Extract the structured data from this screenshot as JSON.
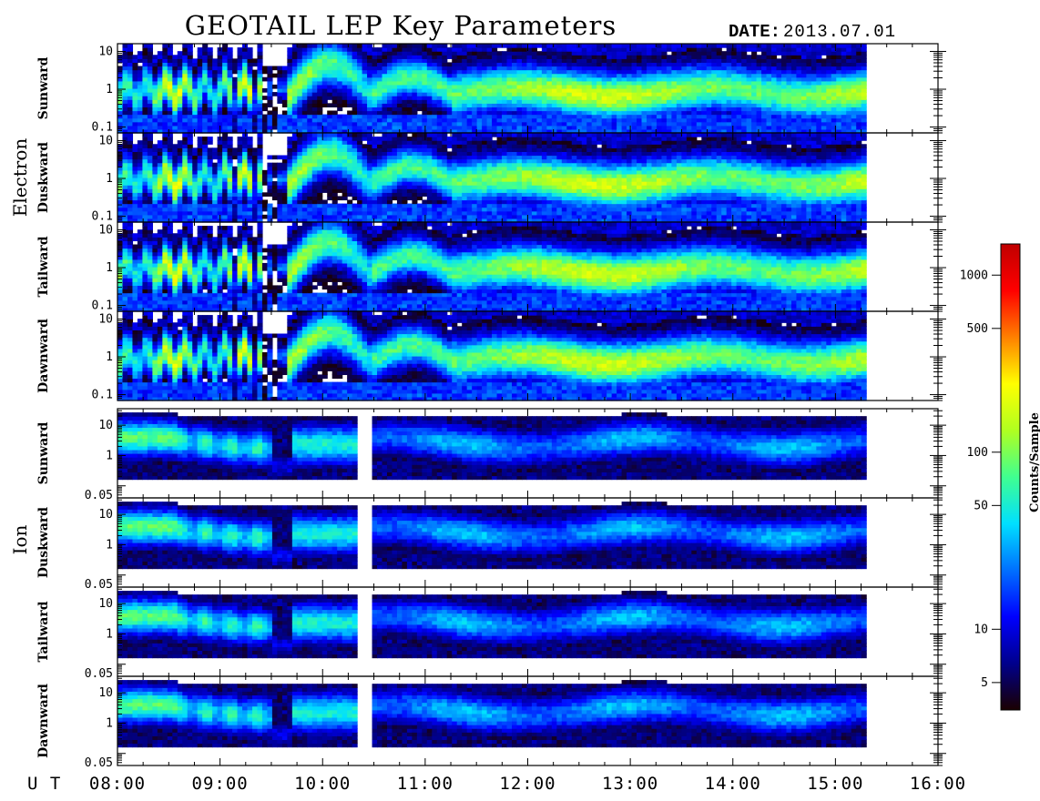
{
  "chart_data": {
    "type": "heatmap",
    "title": "GEOTAIL LEP Key Parameters",
    "date_label": "DATE:",
    "date_value": "2013.07.01",
    "time_axis": {
      "label": "U T",
      "range_hours": [
        8,
        16
      ],
      "ticks": [
        "08:00",
        "09:00",
        "10:00",
        "11:00",
        "12:00",
        "13:00",
        "14:00",
        "15:00",
        "16:00"
      ],
      "data_end_hours": 15.3
    },
    "groups": [
      {
        "label": "Electron",
        "y_range": [
          0.07,
          16
        ],
        "y_ticks": [
          {
            "label": "10",
            "value": 10
          },
          {
            "label": "1",
            "value": 1
          },
          {
            "label": "0.1",
            "value": 0.1
          }
        ],
        "panels": [
          {
            "label": "Sunward"
          },
          {
            "label": "Duskward"
          },
          {
            "label": "Tailward"
          },
          {
            "label": "Dawnward"
          }
        ]
      },
      {
        "label": "Ion",
        "y_range": [
          0.04,
          35
        ],
        "y_ticks": [
          {
            "label": "10",
            "value": 10
          },
          {
            "label": "1",
            "value": 1
          },
          {
            "label": "0.05",
            "value": 0.05
          }
        ],
        "panels": [
          {
            "label": "Sunward"
          },
          {
            "label": "Duskward"
          },
          {
            "label": "Tailward"
          },
          {
            "label": "Dawnward"
          }
        ]
      }
    ],
    "colorbar": {
      "title": "Counts/Sample",
      "scale": "log",
      "range": [
        3.5,
        1500
      ],
      "ticks": [
        {
          "label": "1000",
          "value": 1000
        },
        {
          "label": "500",
          "value": 500
        },
        {
          "label": "100",
          "value": 100
        },
        {
          "label": "50",
          "value": 50
        },
        {
          "label": "10",
          "value": 10
        },
        {
          "label": "5",
          "value": 5
        }
      ],
      "colors": [
        "#1a0000",
        "#00008c",
        "#0000ff",
        "#0070ff",
        "#00e0ff",
        "#40ff90",
        "#b0ff20",
        "#ffff00",
        "#ff8000",
        "#ff0000",
        "#c00000"
      ]
    }
  }
}
